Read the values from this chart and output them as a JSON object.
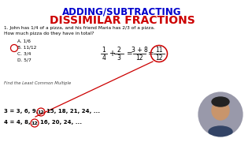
{
  "title1": "ADDING/SUBTRACTING",
  "title2": "DISSIMILAR FRACTIONS",
  "title1_color": "#0000cc",
  "title2_color": "#cc0000",
  "bg_color": "#ffffff",
  "q_line1": "1. John has 1/4 of a pizza, and his friend Maria has 2/3 of a pizza.",
  "q_line2": "How much pizza do they have in total?",
  "choices": [
    "A. 1/6",
    "B. 11/12",
    "C. 3/4",
    "D. 5/7"
  ],
  "answer_index": 1,
  "lcm_label": "Find the Least Common Multiple",
  "mult3_pre": "3 = 3, 6, 9,",
  "mult3_mid": "12",
  "mult3_post": "15, 18, 21, 24, ...",
  "mult4_pre": "4 = 4, 8,",
  "mult4_mid": "12",
  "mult4_post": "16, 20, 24, ...",
  "circle_color": "#cc0000",
  "line_color": "#cc0000",
  "person_bg": "#9999aa"
}
